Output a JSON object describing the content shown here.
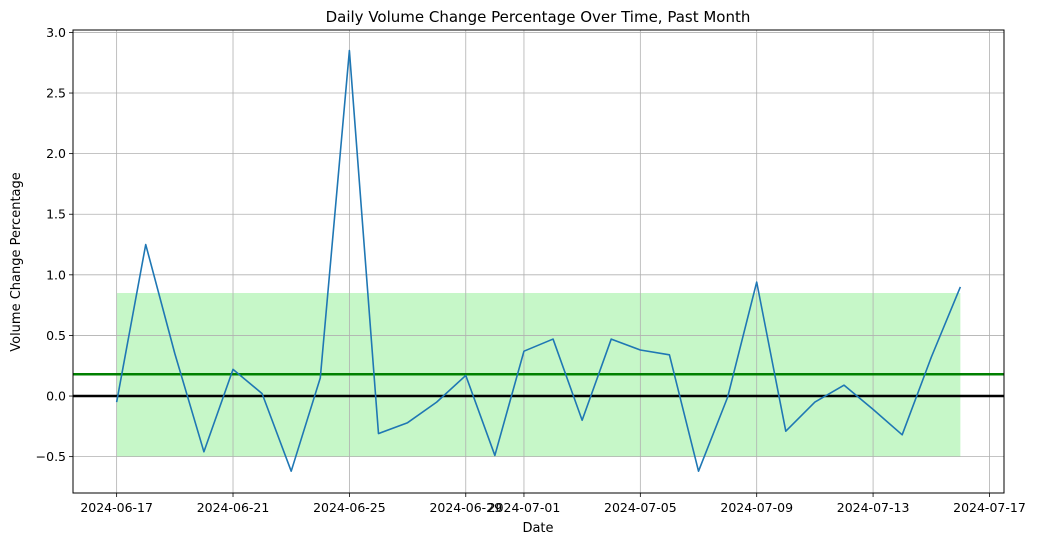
{
  "chart_data": {
    "type": "line",
    "title": "Daily Volume Change Percentage Over Time, Past Month",
    "xlabel": "Date",
    "ylabel": "Volume Change Percentage",
    "grid": true,
    "xlim": [
      "2024-06-15.5",
      "2024-07-17.5"
    ],
    "ylim": [
      -0.8,
      3.02
    ],
    "x_ticks": [
      "2024-06-17",
      "2024-06-21",
      "2024-06-25",
      "2024-06-29",
      "2024-07-01",
      "2024-07-05",
      "2024-07-09",
      "2024-07-13",
      "2024-07-17"
    ],
    "y_ticks": [
      -0.5,
      0.0,
      0.5,
      1.0,
      1.5,
      2.0,
      2.5,
      3.0
    ],
    "y_tick_labels": [
      "−0.5",
      "0.0",
      "0.5",
      "1.0",
      "1.5",
      "2.0",
      "2.5",
      "3.0"
    ],
    "series": [
      {
        "color": "#1f77b4",
        "x": [
          "2024-06-17",
          "2024-06-18",
          "2024-06-19",
          "2024-06-20",
          "2024-06-21",
          "2024-06-22",
          "2024-06-23",
          "2024-06-24",
          "2024-06-25",
          "2024-06-26",
          "2024-06-27",
          "2024-06-28",
          "2024-06-29",
          "2024-06-30",
          "2024-07-01",
          "2024-07-02",
          "2024-07-03",
          "2024-07-04",
          "2024-07-05",
          "2024-07-06",
          "2024-07-07",
          "2024-07-08",
          "2024-07-09",
          "2024-07-10",
          "2024-07-11",
          "2024-07-12",
          "2024-07-13",
          "2024-07-14",
          "2024-07-15",
          "2024-07-16"
        ],
        "values": [
          -0.05,
          1.25,
          0.35,
          -0.46,
          0.22,
          0.02,
          -0.62,
          0.15,
          2.85,
          -0.31,
          -0.22,
          -0.05,
          0.17,
          -0.49,
          0.37,
          0.47,
          -0.2,
          0.47,
          0.38,
          0.34,
          -0.62,
          -0.01,
          0.94,
          -0.29,
          -0.05,
          0.09,
          -0.11,
          -0.32,
          0.32,
          0.9
        ]
      }
    ],
    "reference_lines": [
      {
        "value": 0.18,
        "color": "#008000"
      },
      {
        "value": 0.0,
        "color": "#000000"
      }
    ],
    "band": {
      "x_start": "2024-06-17",
      "x_end": "2024-07-16",
      "y_low": -0.5,
      "y_high": 0.85,
      "color": "#c6f7c8"
    }
  }
}
